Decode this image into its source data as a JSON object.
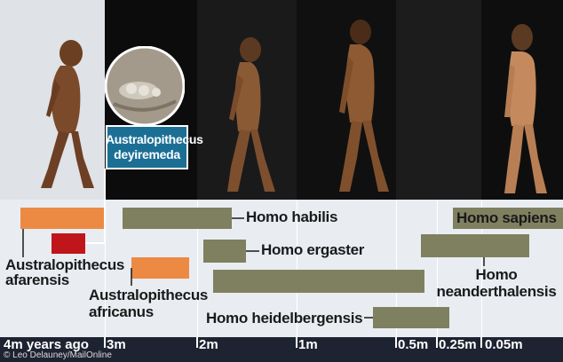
{
  "species": {
    "afarensis": "Australopithecus\nafarensis",
    "deyiremeda": "Australopithecus\ndeyiremeda",
    "africanus": "Australopithecus\nafricanus",
    "habilis": "Homo habilis",
    "ergaster": "Homo ergaster",
    "heidelbergensis": "Homo heidelbergensis",
    "neanderthalensis": "Homo\nneanderthalensis",
    "sapiens": "Homo sapiens"
  },
  "axis": {
    "ticks": [
      "4m years ago",
      "3m",
      "2m",
      "1m",
      "0.5m",
      "0.25m",
      "0.05m"
    ]
  },
  "credit": "© Leo Delauney/MailOnline",
  "colors": {
    "australopithecus_bar": "#ec8a43",
    "deyiremeda_bar": "#c0151b",
    "homo_bar": "#7f8060",
    "axis_bg": "#1d2331",
    "callout_bg": "#1b6f95",
    "chart_bg": "#e9edf2"
  }
}
